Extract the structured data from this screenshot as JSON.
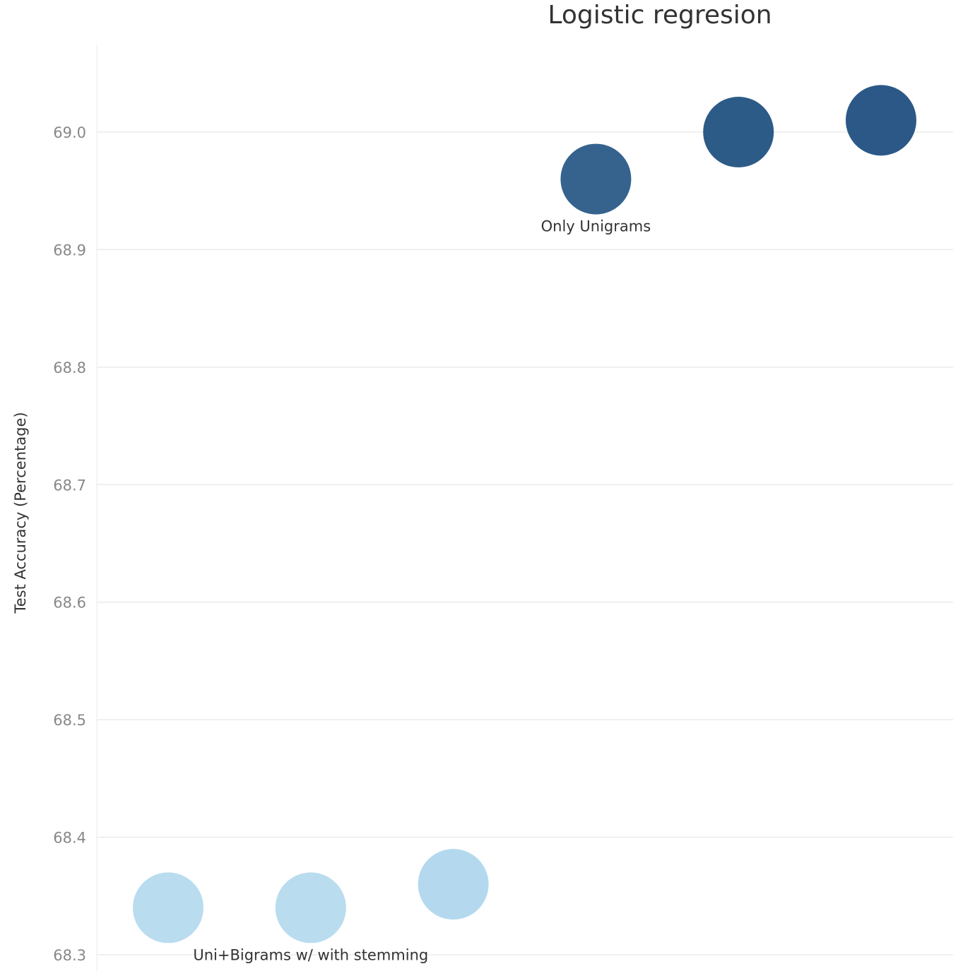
{
  "chart_data": {
    "type": "scatter",
    "title": "Logistic regresion",
    "xlabel": "",
    "ylabel": "Test Accuracy (Percentage)",
    "ylim": [
      68.3,
      69.07
    ],
    "yticks": [
      "68.3",
      "68.4",
      "68.5",
      "68.6",
      "68.7",
      "68.8",
      "68.9",
      "69.0"
    ],
    "grid": true,
    "points": [
      {
        "x": 1,
        "y": 68.34,
        "color": "#b9dcef"
      },
      {
        "x": 2,
        "y": 68.34,
        "color": "#b9dcef"
      },
      {
        "x": 3,
        "y": 68.36,
        "color": "#b4d9ee"
      },
      {
        "x": 4,
        "y": 68.96,
        "color": "#35638e"
      },
      {
        "x": 5,
        "y": 69.0,
        "color": "#2d5b88"
      },
      {
        "x": 6,
        "y": 69.01,
        "color": "#2b5887"
      }
    ],
    "annotations": [
      {
        "text": "Uni+Bigrams w/ with stemming",
        "x": 2,
        "y": 68.34
      },
      {
        "text": "Only Unigrams",
        "x": 4,
        "y": 68.96
      }
    ]
  }
}
